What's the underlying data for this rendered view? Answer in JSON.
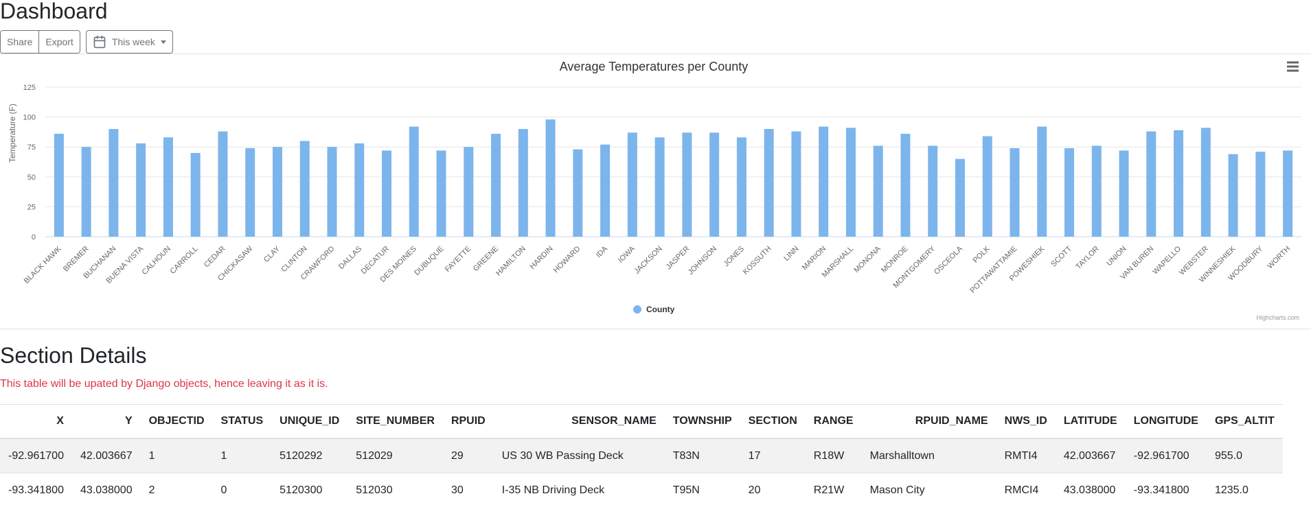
{
  "page": {
    "title": "Dashboard",
    "toolbar": {
      "share_label": "Share",
      "export_label": "Export",
      "range_label": "This week"
    },
    "section_title": "Section Details",
    "note": "This table will be upated by Django objects, hence leaving it as it is."
  },
  "chart_data": {
    "type": "bar",
    "title": "Average Temperatures per County",
    "xlabel": "",
    "ylabel": "Temperature (F)",
    "ylim": [
      0,
      125
    ],
    "yticks": [
      "0",
      "25",
      "50",
      "75",
      "100",
      "125"
    ],
    "categories": [
      "BLACK HAWK",
      "BREMER",
      "BUCHANAN",
      "BUENA VISTA",
      "CALHOUN",
      "CARROLL",
      "CEDAR",
      "CHICKASAW",
      "CLAY",
      "CLINTON",
      "CRAWFORD",
      "DALLAS",
      "DECATUR",
      "DES MOINES",
      "DUBUQUE",
      "FAYETTE",
      "GREENE",
      "HAMILTON",
      "HARDIN",
      "HOWARD",
      "IDA",
      "IOWA",
      "JACKSON",
      "JASPER",
      "JOHNSON",
      "JONES",
      "KOSSUTH",
      "LINN",
      "MARION",
      "MARSHALL",
      "MONONA",
      "MONROE",
      "MONTGOMERY",
      "OSCEOLA",
      "POLK",
      "POTTAWATTAMIE",
      "POWESHIEK",
      "SCOTT",
      "TAYLOR",
      "UNION",
      "VAN BUREN",
      "WAPELLO",
      "WEBSTER",
      "WINNESHIEK",
      "WOODBURY",
      "WORTH"
    ],
    "series": [
      {
        "name": "County",
        "color": "#7cb5ec",
        "values": [
          86,
          75,
          90,
          78,
          83,
          70,
          88,
          74,
          75,
          80,
          75,
          78,
          72,
          92,
          72,
          75,
          86,
          90,
          98,
          73,
          77,
          87,
          83,
          87,
          87,
          83,
          90,
          88,
          92,
          91,
          76,
          86,
          76,
          65,
          84,
          74,
          92,
          74,
          76,
          72,
          88,
          89,
          91,
          69,
          71,
          72
        ]
      }
    ],
    "legend_position": "bottom-center",
    "grid": true,
    "credit": "Highcharts.com"
  },
  "table": {
    "columns": [
      "X",
      "Y",
      "OBJECTID",
      "STATUS",
      "UNIQUE_ID",
      "SITE_NUMBER",
      "RPUID",
      "SENSOR_NAME",
      "TOWNSHIP",
      "SECTION",
      "RANGE",
      "RPUID_NAME",
      "NWS_ID",
      "LATITUDE",
      "LONGITUDE",
      "GPS_ALTIT"
    ],
    "rows": [
      [
        "-92.961700",
        "42.003667",
        "1",
        "1",
        "5120292",
        "512029",
        "29",
        "US 30 WB Passing Deck",
        "T83N",
        "17",
        "R18W",
        "Marshalltown",
        "RMTI4",
        "42.003667",
        "-92.961700",
        "955.0"
      ],
      [
        "-93.341800",
        "43.038000",
        "2",
        "0",
        "5120300",
        "512030",
        "30",
        "I-35 NB Driving Deck",
        "T95N",
        "20",
        "R21W",
        "Mason City",
        "RMCI4",
        "43.038000",
        "-93.341800",
        "1235.0"
      ]
    ]
  }
}
